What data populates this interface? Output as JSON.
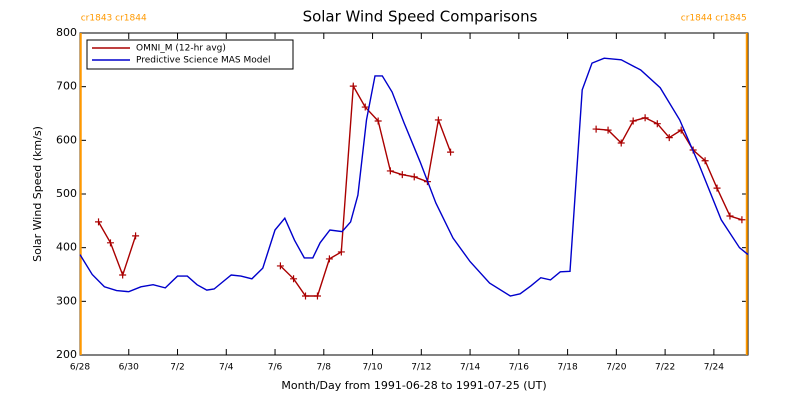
{
  "chart_data": {
    "type": "line",
    "title": "Solar Wind Speed Comparisons",
    "xlabel": "Month/Day from 1991-06-28 to 1991-07-25 (UT)",
    "ylabel": "Solar Wind Speed (km/s)",
    "xlim": [
      0,
      27.4
    ],
    "ylim": [
      200,
      800
    ],
    "yticks": [
      200,
      300,
      400,
      500,
      600,
      700,
      800
    ],
    "xticks": [
      {
        "value": 0,
        "label": "6/28"
      },
      {
        "value": 2,
        "label": "6/30"
      },
      {
        "value": 4,
        "label": "7/2"
      },
      {
        "value": 6,
        "label": "7/4"
      },
      {
        "value": 8,
        "label": "7/6"
      },
      {
        "value": 10,
        "label": "7/8"
      },
      {
        "value": 12,
        "label": "7/10"
      },
      {
        "value": 14,
        "label": "7/12"
      },
      {
        "value": 16,
        "label": "7/14"
      },
      {
        "value": 18,
        "label": "7/16"
      },
      {
        "value": 20,
        "label": "7/18"
      },
      {
        "value": 22,
        "label": "7/20"
      },
      {
        "value": 24,
        "label": "7/22"
      },
      {
        "value": 26,
        "label": "7/24"
      }
    ],
    "boundaries": [
      {
        "x": 0.03,
        "label": "cr1843 cr1844",
        "color": "#ff9900"
      },
      {
        "x": 27.35,
        "label": "cr1844 cr1845",
        "color": "#ff9900"
      }
    ],
    "series": [
      {
        "name": "OMNI_M (12-hr avg)",
        "color": "#aa0000",
        "markers": true,
        "x": [
          0.76,
          1.25,
          1.75,
          2.28,
          5.0,
          8.22,
          8.76,
          9.25,
          9.74,
          10.23,
          10.72,
          11.21,
          11.7,
          12.23,
          12.73,
          13.22,
          13.71,
          14.25,
          14.7,
          15.2,
          18.0,
          21.17,
          21.66,
          22.2,
          22.69,
          23.18,
          23.68,
          24.17,
          24.66,
          25.15,
          25.64,
          26.13,
          26.66,
          27.15
        ],
        "values": [
          448,
          409,
          349,
          422,
          null,
          366,
          342,
          310,
          310,
          379,
          392,
          701,
          662,
          636,
          543,
          536,
          532,
          523,
          638,
          578,
          null,
          621,
          619,
          595,
          636,
          642,
          631,
          605,
          619,
          582,
          562,
          511,
          459,
          452
        ]
      },
      {
        "name": "Predictive Science MAS Model",
        "color": "#0000cc",
        "markers": false,
        "x": [
          0,
          0.5,
          1,
          1.5,
          2,
          2.5,
          3,
          3.5,
          4,
          4.4,
          4.8,
          5.2,
          5.5,
          5.85,
          6.2,
          6.6,
          7.05,
          7.5,
          8,
          8.4,
          8.8,
          9.2,
          9.55,
          9.85,
          10.25,
          10.75,
          11.1,
          11.4,
          11.75,
          12.1,
          12.4,
          12.8,
          13.3,
          13.95,
          14.6,
          15.3,
          16,
          16.8,
          17.65,
          18.05,
          18.5,
          18.9,
          19.3,
          19.7,
          20.1,
          20.6,
          21,
          21.5,
          22.2,
          23,
          23.8,
          24.6,
          25.4,
          26.3,
          27.05,
          27.4
        ],
        "values": [
          387,
          350,
          327,
          320,
          318,
          327,
          331,
          325,
          347,
          347,
          331,
          321,
          323,
          336,
          349,
          347,
          342,
          362,
          433,
          455,
          414,
          381,
          381,
          409,
          433,
          430,
          448,
          498,
          638,
          720,
          720,
          690,
          632,
          560,
          483,
          418,
          374,
          334,
          310,
          314,
          329,
          344,
          340,
          355,
          356,
          694,
          744,
          753,
          750,
          731,
          698,
          638,
          554,
          452,
          400,
          387
        ]
      }
    ]
  }
}
